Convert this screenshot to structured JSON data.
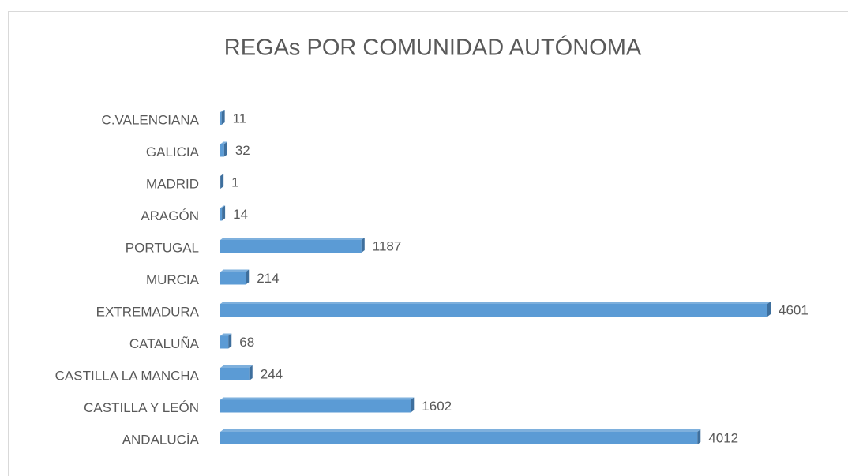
{
  "chart_data": {
    "type": "bar",
    "orientation": "horizontal",
    "title": "REGAs  POR COMUNIDAD AUTÓNOMA",
    "categories": [
      "C.VALENCIANA",
      "GALICIA",
      "MADRID",
      "ARAGÓN",
      "PORTUGAL",
      "MURCIA",
      "EXTREMADURA",
      "CATALUÑA",
      "CASTILLA LA MANCHA",
      "CASTILLA Y LEÓN",
      "ANDALUCÍA"
    ],
    "values": [
      11,
      32,
      1,
      14,
      1187,
      214,
      4601,
      68,
      244,
      1602,
      4012
    ],
    "color": "#5b9bd5"
  }
}
